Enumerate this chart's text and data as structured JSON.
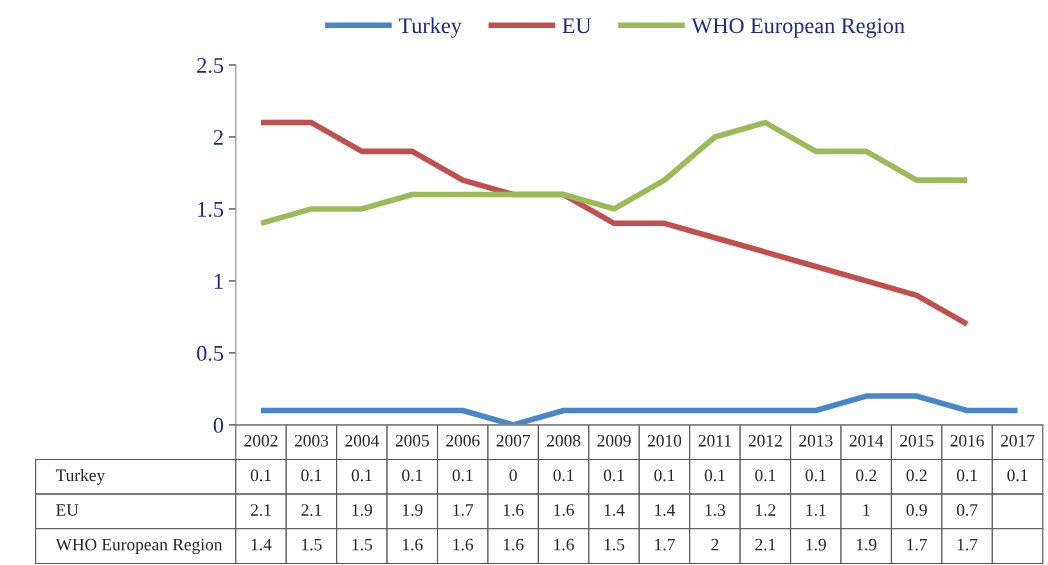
{
  "chart_data": {
    "type": "line",
    "categories": [
      "2002",
      "2003",
      "2004",
      "2005",
      "2006",
      "2007",
      "2008",
      "2009",
      "2010",
      "2011",
      "2012",
      "2013",
      "2014",
      "2015",
      "2016",
      "2017"
    ],
    "series": [
      {
        "name": "Turkey",
        "color": "#4a86c6",
        "values": [
          0.1,
          0.1,
          0.1,
          0.1,
          0.1,
          0,
          0.1,
          0.1,
          0.1,
          0.1,
          0.1,
          0.1,
          0.2,
          0.2,
          0.1,
          0.1
        ]
      },
      {
        "name": "EU",
        "color": "#c0504d",
        "values": [
          2.1,
          2.1,
          1.9,
          1.9,
          1.7,
          1.6,
          1.6,
          1.4,
          1.4,
          1.3,
          1.2,
          1.1,
          1,
          0.9,
          0.7,
          null
        ]
      },
      {
        "name": "WHO European Region",
        "color": "#9bbb59",
        "values": [
          1.4,
          1.5,
          1.5,
          1.6,
          1.6,
          1.6,
          1.6,
          1.5,
          1.7,
          2,
          2.1,
          1.9,
          1.9,
          1.7,
          1.7,
          null
        ]
      }
    ],
    "ylim": [
      0,
      2.5
    ],
    "yticks": [
      0,
      0.5,
      1,
      1.5,
      2,
      2.5
    ],
    "grid": false,
    "legend": "top",
    "marker": "none",
    "line_style": "solid",
    "data_labels": true
  }
}
